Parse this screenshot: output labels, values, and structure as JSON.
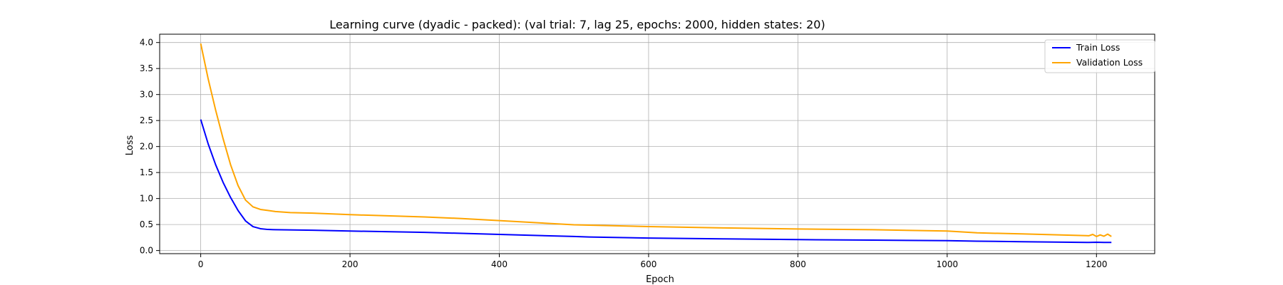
{
  "chart_data": {
    "type": "line",
    "title": "Learning curve (dyadic - packed): (val trial: 7, lag 25, epochs: 2000, hidden states: 20)",
    "xlabel": "Epoch",
    "ylabel": "Loss",
    "xlim": [
      -55,
      1278
    ],
    "ylim": [
      -0.06,
      4.16
    ],
    "xticks": [
      0,
      200,
      400,
      600,
      800,
      1000,
      1200
    ],
    "yticks": [
      0.0,
      0.5,
      1.0,
      1.5,
      2.0,
      2.5,
      3.0,
      3.5,
      4.0
    ],
    "grid": true,
    "legend_position": "top-right",
    "series": [
      {
        "name": "Train Loss",
        "color": "#0000ff",
        "x": [
          0,
          10,
          20,
          30,
          40,
          50,
          60,
          70,
          80,
          90,
          100,
          150,
          200,
          300,
          400,
          500,
          520,
          600,
          700,
          800,
          900,
          1000,
          1040,
          1100,
          1190,
          1200,
          1210,
          1220
        ],
        "y": [
          2.52,
          2.05,
          1.65,
          1.31,
          1.02,
          0.77,
          0.57,
          0.46,
          0.42,
          0.405,
          0.4,
          0.39,
          0.375,
          0.35,
          0.31,
          0.27,
          0.26,
          0.24,
          0.225,
          0.21,
          0.2,
          0.19,
          0.18,
          0.17,
          0.155,
          0.16,
          0.155,
          0.155
        ]
      },
      {
        "name": "Validation Loss",
        "color": "#ffa500",
        "x": [
          0,
          10,
          20,
          30,
          40,
          50,
          60,
          70,
          80,
          90,
          100,
          120,
          150,
          200,
          300,
          350,
          400,
          500,
          600,
          700,
          800,
          900,
          1000,
          1040,
          1100,
          1190,
          1195,
          1200,
          1205,
          1210,
          1215,
          1220
        ],
        "y": [
          3.98,
          3.3,
          2.7,
          2.15,
          1.65,
          1.25,
          0.97,
          0.84,
          0.79,
          0.77,
          0.75,
          0.73,
          0.72,
          0.69,
          0.645,
          0.615,
          0.575,
          0.495,
          0.46,
          0.435,
          0.415,
          0.4,
          0.375,
          0.34,
          0.32,
          0.285,
          0.31,
          0.27,
          0.3,
          0.275,
          0.315,
          0.27
        ]
      }
    ]
  }
}
